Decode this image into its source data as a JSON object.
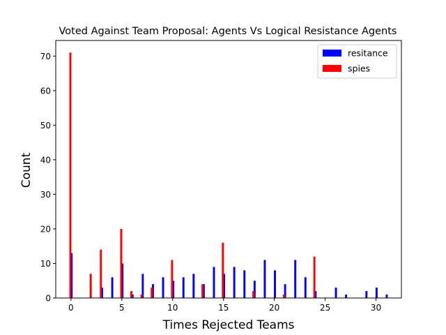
{
  "chart_data": {
    "type": "bar",
    "title": "Voted Against Team Proposal:  Agents Vs Logical Resistance Agents",
    "xlabel": "Times Rejected Teams",
    "ylabel": "Count",
    "xlim": [
      -1.5,
      32.5
    ],
    "ylim": [
      0,
      74.5
    ],
    "xticks": [
      0,
      5,
      10,
      15,
      20,
      25,
      30
    ],
    "yticks": [
      0,
      10,
      20,
      30,
      40,
      50,
      60,
      70
    ],
    "grid": false,
    "legend_position": "top-right",
    "series": [
      {
        "name": "resitance",
        "color": "#0000ff",
        "points": [
          [
            0,
            13
          ],
          [
            3,
            3
          ],
          [
            4,
            6
          ],
          [
            5,
            10
          ],
          [
            6,
            1
          ],
          [
            7,
            7
          ],
          [
            8,
            4
          ],
          [
            9,
            6
          ],
          [
            10,
            5
          ],
          [
            11,
            6
          ],
          [
            12,
            7
          ],
          [
            13,
            4
          ],
          [
            14,
            9
          ],
          [
            15,
            7
          ],
          [
            16,
            9
          ],
          [
            17,
            8
          ],
          [
            18,
            5
          ],
          [
            19,
            11
          ],
          [
            20,
            8
          ],
          [
            21,
            4
          ],
          [
            22,
            11
          ],
          [
            23,
            6
          ],
          [
            24,
            2
          ],
          [
            26,
            3
          ],
          [
            27,
            1
          ],
          [
            29,
            2
          ],
          [
            30,
            3
          ],
          [
            31,
            1
          ]
        ]
      },
      {
        "name": "spies",
        "color": "#ff0000",
        "points": [
          [
            0,
            71
          ],
          [
            2,
            7
          ],
          [
            3,
            14
          ],
          [
            5,
            20
          ],
          [
            6,
            2
          ],
          [
            7,
            1
          ],
          [
            8,
            3
          ],
          [
            10,
            11
          ],
          [
            13,
            4
          ],
          [
            15,
            16
          ],
          [
            18,
            2
          ],
          [
            21,
            1
          ],
          [
            24,
            12
          ]
        ]
      }
    ]
  }
}
